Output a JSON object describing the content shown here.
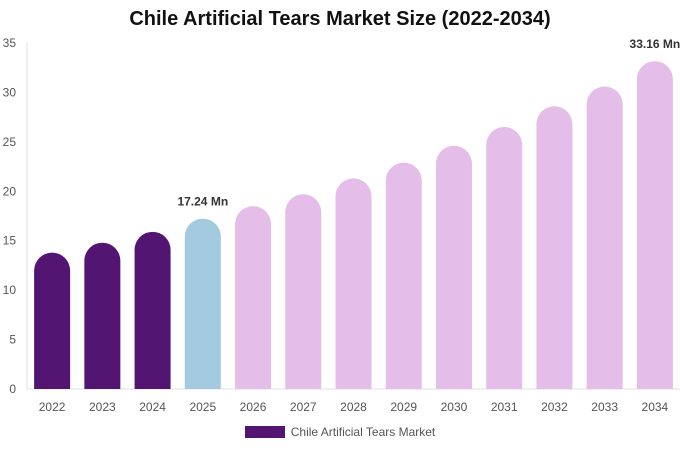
{
  "chart_data": {
    "type": "bar",
    "title": "Chile Artificial Tears Market Size (2022-2034)",
    "categories": [
      "2022",
      "2023",
      "2024",
      "2025",
      "2026",
      "2027",
      "2028",
      "2029",
      "2030",
      "2031",
      "2032",
      "2033",
      "2034"
    ],
    "series": [
      {
        "name": "Chile Artificial Tears Market",
        "values": [
          13.8,
          14.8,
          15.9,
          17.24,
          18.5,
          19.7,
          21.3,
          22.9,
          24.6,
          26.5,
          28.6,
          30.6,
          33.16
        ]
      }
    ],
    "ylim": [
      0,
      35
    ],
    "yticks": [
      "0",
      "5",
      "10",
      "15",
      "20",
      "25",
      "30",
      "35"
    ],
    "grid": false,
    "legend": "bottom",
    "data_labels": [
      {
        "category": "2025",
        "text": "17.24 Mn"
      },
      {
        "category": "2034",
        "text": "33.16 Mn"
      }
    ],
    "colors": {
      "historical": "#521572",
      "current": "#a3cadf",
      "forecast": "#e5bde9",
      "legend": "#521572"
    },
    "color_groups": [
      "historical",
      "historical",
      "historical",
      "current",
      "forecast",
      "forecast",
      "forecast",
      "forecast",
      "forecast",
      "forecast",
      "forecast",
      "forecast",
      "forecast"
    ]
  }
}
